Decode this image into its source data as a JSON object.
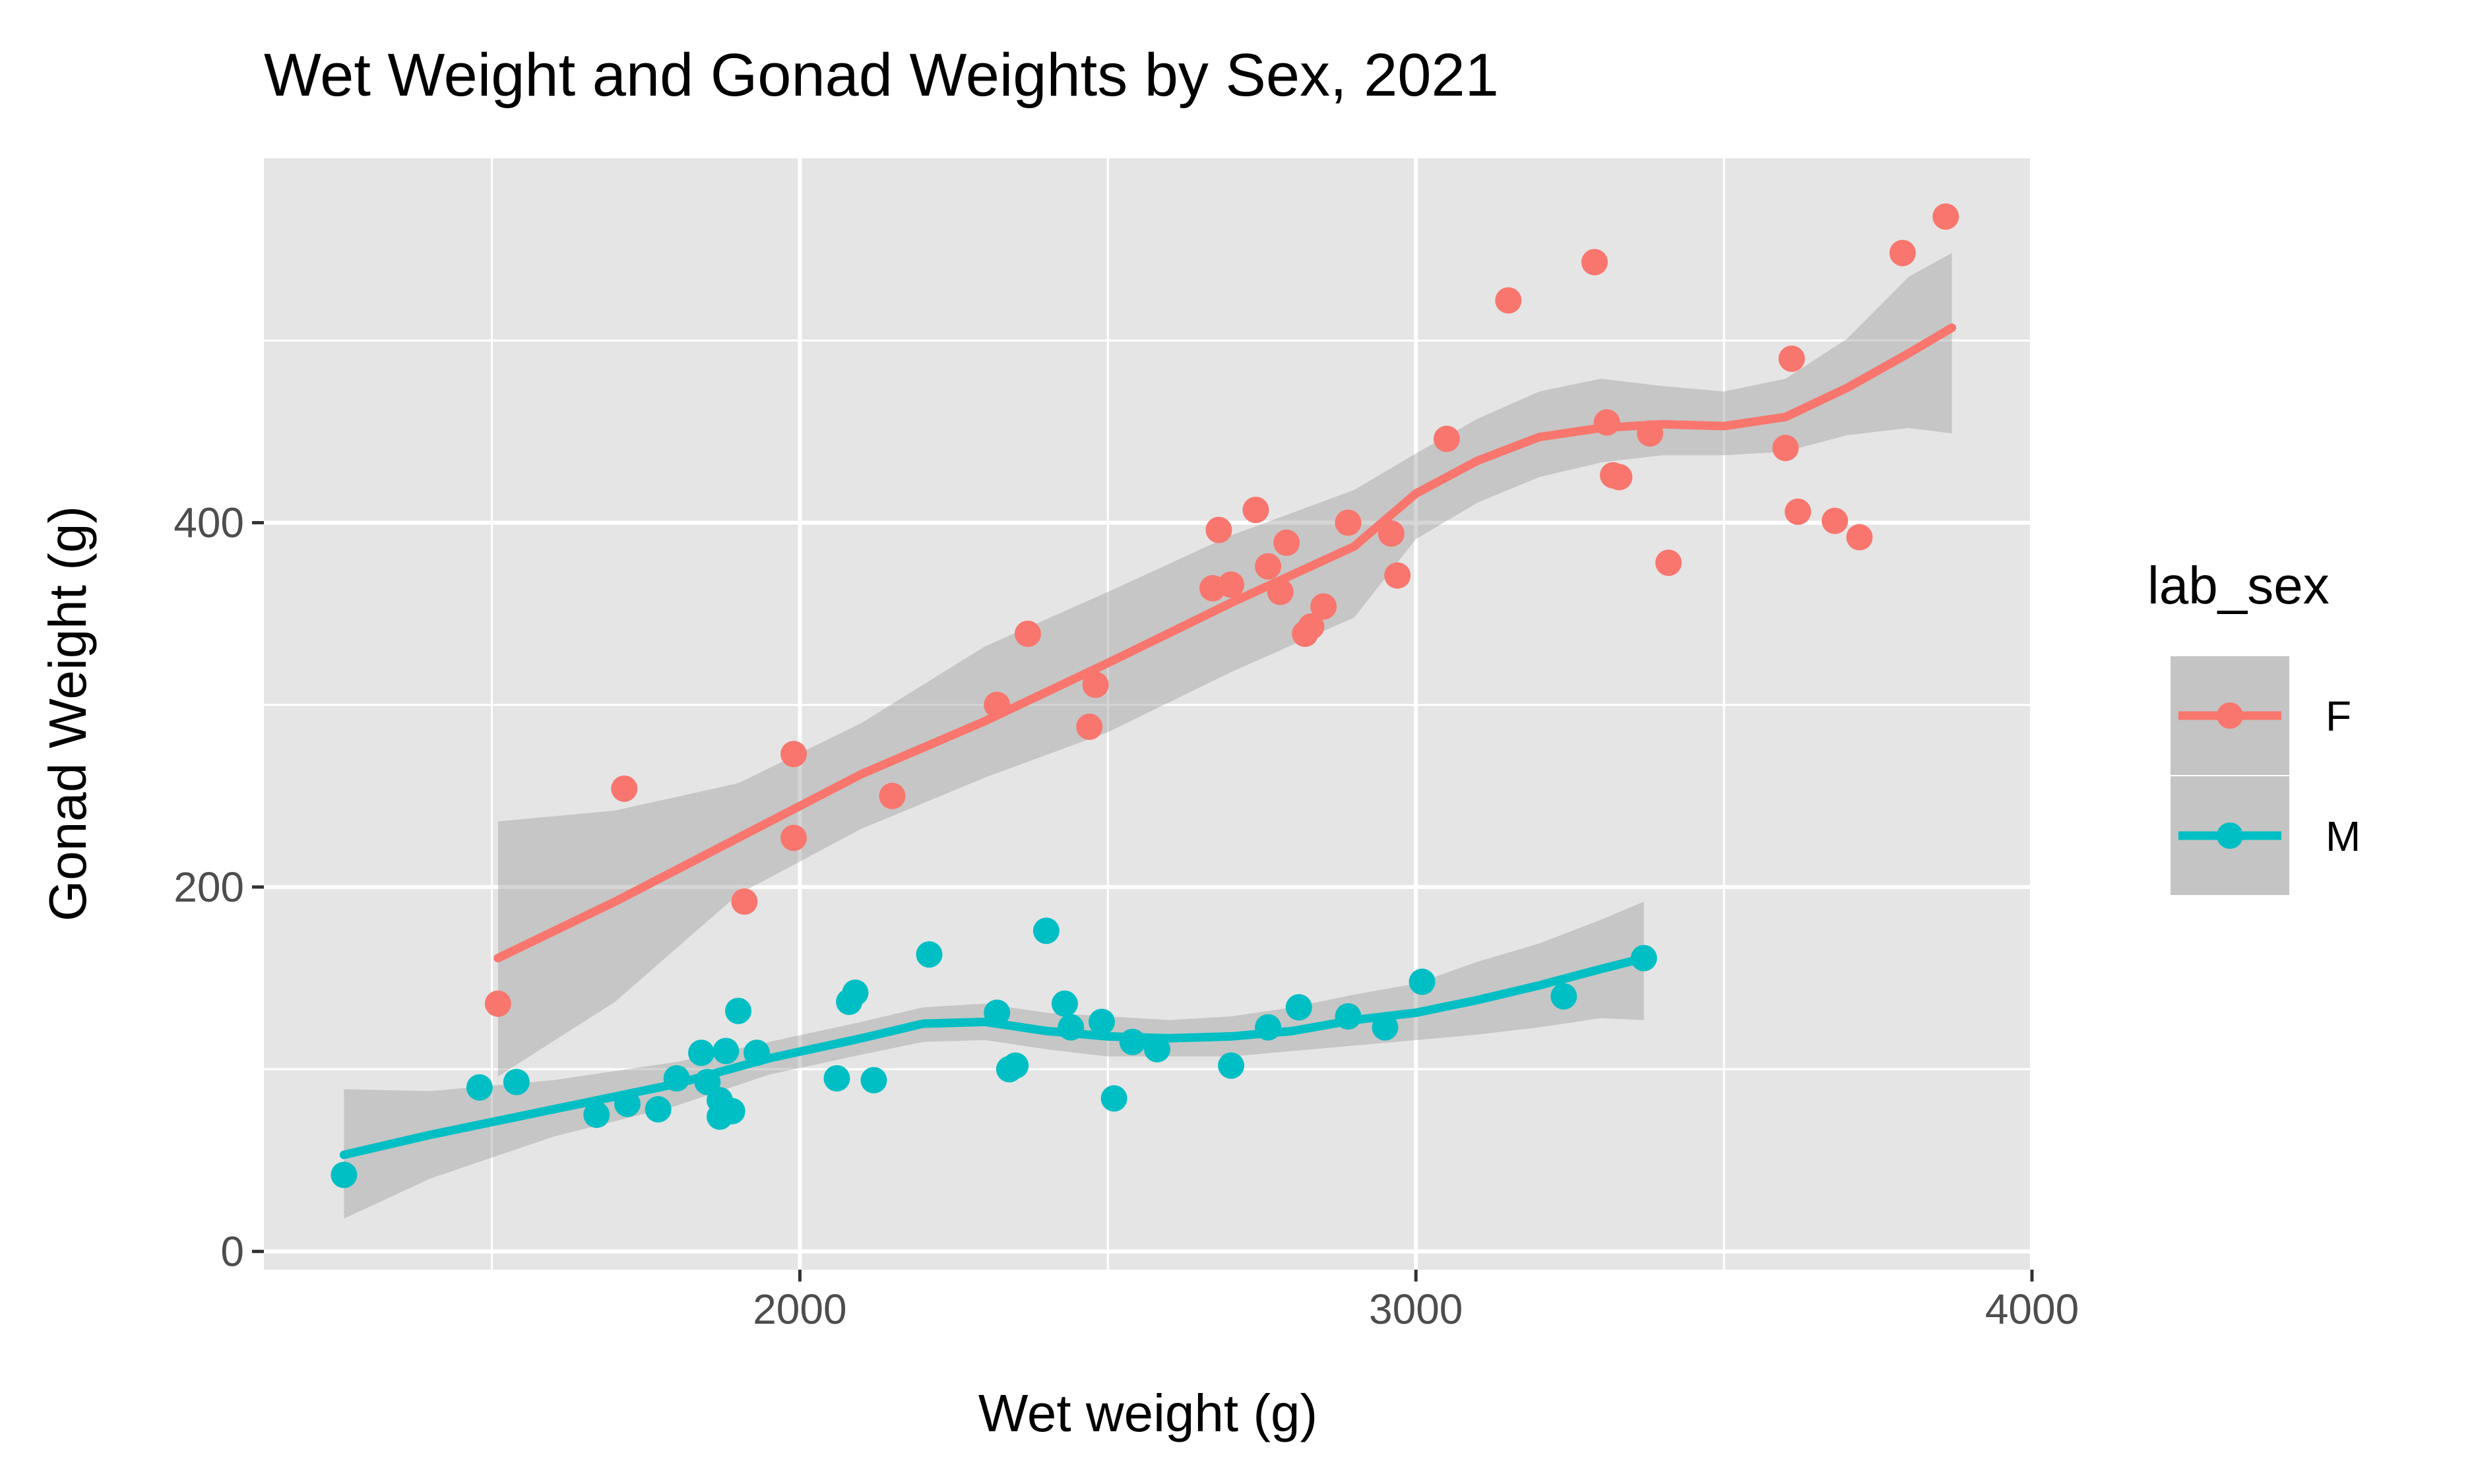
{
  "chart_data": {
    "type": "scatter",
    "title": "Wet Weight and Gonad Weights by Sex, 2021",
    "xlabel": "Wet weight (g)",
    "ylabel": "Gonad Weight (g)",
    "xlim": [
      1130,
      4000
    ],
    "ylim": [
      -10,
      600
    ],
    "x_ticks": [
      2000,
      3000,
      4000
    ],
    "x_minor_ticks": [
      1500,
      2500,
      3500
    ],
    "y_ticks": [
      0,
      200,
      400
    ],
    "y_minor_ticks": [
      100,
      300,
      500
    ],
    "grid": true,
    "panel_color": "#e5e5e5",
    "legend": {
      "title": "lab_sex",
      "position": "right"
    },
    "series": [
      {
        "name": "F",
        "color": "#f8766d",
        "points": [
          [
            1510,
            136
          ],
          [
            1715,
            254
          ],
          [
            1910,
            192
          ],
          [
            1990,
            273
          ],
          [
            1990,
            227
          ],
          [
            2150,
            250
          ],
          [
            2320,
            300
          ],
          [
            2370,
            339
          ],
          [
            2480,
            311
          ],
          [
            2470,
            288
          ],
          [
            2670,
            364
          ],
          [
            2680,
            396
          ],
          [
            2700,
            366
          ],
          [
            2740,
            407
          ],
          [
            2760,
            376
          ],
          [
            2790,
            389
          ],
          [
            2780,
            362
          ],
          [
            2820,
            339
          ],
          [
            2830,
            343
          ],
          [
            2850,
            354
          ],
          [
            2890,
            400
          ],
          [
            2960,
            394
          ],
          [
            2970,
            371
          ],
          [
            3050,
            446
          ],
          [
            3150,
            522
          ],
          [
            3290,
            543
          ],
          [
            3310,
            455
          ],
          [
            3320,
            426
          ],
          [
            3330,
            425
          ],
          [
            3380,
            449
          ],
          [
            3410,
            378
          ],
          [
            3600,
            441
          ],
          [
            3610,
            490
          ],
          [
            3620,
            406
          ],
          [
            3680,
            401
          ],
          [
            3720,
            392
          ],
          [
            3790,
            548
          ],
          [
            3860,
            568
          ]
        ],
        "smooth": [
          [
            1510,
            161
          ],
          [
            1700,
            192
          ],
          [
            1900,
            227
          ],
          [
            2100,
            262
          ],
          [
            2300,
            291
          ],
          [
            2500,
            323
          ],
          [
            2700,
            356
          ],
          [
            2900,
            387
          ],
          [
            3000,
            416
          ],
          [
            3100,
            434
          ],
          [
            3200,
            447
          ],
          [
            3300,
            452
          ],
          [
            3400,
            454
          ],
          [
            3500,
            453
          ],
          [
            3600,
            458
          ],
          [
            3700,
            474
          ],
          [
            3800,
            493
          ],
          [
            3870,
            507
          ]
        ],
        "smooth_upper": [
          [
            1510,
            236
          ],
          [
            1700,
            242
          ],
          [
            1900,
            257
          ],
          [
            2100,
            290
          ],
          [
            2300,
            332
          ],
          [
            2500,
            362
          ],
          [
            2700,
            393
          ],
          [
            2900,
            418
          ],
          [
            3000,
            438
          ],
          [
            3100,
            457
          ],
          [
            3200,
            472
          ],
          [
            3300,
            479
          ],
          [
            3400,
            475
          ],
          [
            3500,
            472
          ],
          [
            3600,
            479
          ],
          [
            3700,
            501
          ],
          [
            3800,
            535
          ],
          [
            3870,
            548
          ]
        ],
        "smooth_lower": [
          [
            1510,
            96
          ],
          [
            1700,
            137
          ],
          [
            1900,
            196
          ],
          [
            2100,
            232
          ],
          [
            2300,
            260
          ],
          [
            2500,
            285
          ],
          [
            2700,
            318
          ],
          [
            2900,
            348
          ],
          [
            3000,
            391
          ],
          [
            3100,
            411
          ],
          [
            3200,
            425
          ],
          [
            3300,
            433
          ],
          [
            3400,
            437
          ],
          [
            3500,
            437
          ],
          [
            3600,
            439
          ],
          [
            3700,
            448
          ],
          [
            3800,
            452
          ],
          [
            3870,
            449
          ]
        ]
      },
      {
        "name": "M",
        "color": "#00bfc4",
        "points": [
          [
            1260,
            42
          ],
          [
            1480,
            90
          ],
          [
            1540,
            93
          ],
          [
            1670,
            75
          ],
          [
            1720,
            81
          ],
          [
            1770,
            78
          ],
          [
            1800,
            95
          ],
          [
            1840,
            109
          ],
          [
            1850,
            93
          ],
          [
            1870,
            83
          ],
          [
            1880,
            110
          ],
          [
            1870,
            74
          ],
          [
            1890,
            77
          ],
          [
            1900,
            132
          ],
          [
            1930,
            109
          ],
          [
            2060,
            95
          ],
          [
            2080,
            137
          ],
          [
            2090,
            142
          ],
          [
            2120,
            94
          ],
          [
            2210,
            163
          ],
          [
            2320,
            131
          ],
          [
            2340,
            100
          ],
          [
            2350,
            102
          ],
          [
            2400,
            176
          ],
          [
            2430,
            136
          ],
          [
            2440,
            123
          ],
          [
            2490,
            126
          ],
          [
            2510,
            84
          ],
          [
            2540,
            115
          ],
          [
            2580,
            111
          ],
          [
            2700,
            102
          ],
          [
            2760,
            123
          ],
          [
            2810,
            134
          ],
          [
            2890,
            129
          ],
          [
            2950,
            123
          ],
          [
            3010,
            148
          ],
          [
            3240,
            140
          ],
          [
            3370,
            161
          ]
        ],
        "smooth": [
          [
            1260,
            53
          ],
          [
            1400,
            64
          ],
          [
            1600,
            78
          ],
          [
            1800,
            92
          ],
          [
            1950,
            106
          ],
          [
            2100,
            117
          ],
          [
            2200,
            125
          ],
          [
            2300,
            126
          ],
          [
            2400,
            121
          ],
          [
            2500,
            118
          ],
          [
            2600,
            117
          ],
          [
            2700,
            118
          ],
          [
            2800,
            121
          ],
          [
            2900,
            127
          ],
          [
            3000,
            131
          ],
          [
            3100,
            138
          ],
          [
            3200,
            146
          ],
          [
            3300,
            155
          ],
          [
            3370,
            161
          ]
        ],
        "smooth_upper": [
          [
            1260,
            89
          ],
          [
            1400,
            88
          ],
          [
            1600,
            94
          ],
          [
            1800,
            104
          ],
          [
            1950,
            115
          ],
          [
            2100,
            126
          ],
          [
            2200,
            134
          ],
          [
            2300,
            136
          ],
          [
            2400,
            131
          ],
          [
            2500,
            129
          ],
          [
            2600,
            127
          ],
          [
            2700,
            129
          ],
          [
            2800,
            134
          ],
          [
            2900,
            141
          ],
          [
            3000,
            147
          ],
          [
            3100,
            159
          ],
          [
            3200,
            169
          ],
          [
            3300,
            182
          ],
          [
            3370,
            192
          ]
        ],
        "smooth_lower": [
          [
            1260,
            18
          ],
          [
            1400,
            40
          ],
          [
            1600,
            63
          ],
          [
            1800,
            80
          ],
          [
            1950,
            97
          ],
          [
            2100,
            108
          ],
          [
            2200,
            115
          ],
          [
            2300,
            116
          ],
          [
            2400,
            111
          ],
          [
            2500,
            107
          ],
          [
            2600,
            107
          ],
          [
            2700,
            107
          ],
          [
            2800,
            110
          ],
          [
            2900,
            113
          ],
          [
            3000,
            116
          ],
          [
            3100,
            119
          ],
          [
            3200,
            123
          ],
          [
            3300,
            128
          ],
          [
            3370,
            127
          ]
        ]
      }
    ]
  }
}
